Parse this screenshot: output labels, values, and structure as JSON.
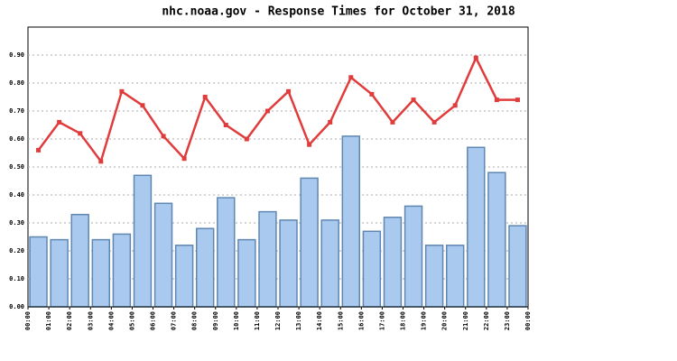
{
  "chart_data": {
    "type": "bar-line",
    "title": "nhc.noaa.gov - Response Times for October 31, 2018",
    "xticks": [
      "00:00",
      "01:00",
      "02:00",
      "03:00",
      "04:00",
      "05:00",
      "06:00",
      "07:00",
      "08:00",
      "09:00",
      "10:00",
      "11:00",
      "12:00",
      "13:00",
      "14:00",
      "15:00",
      "16:00",
      "17:00",
      "18:00",
      "19:00",
      "20:00",
      "21:00",
      "22:00",
      "23:00",
      "00:00"
    ],
    "series": [
      {
        "type": "bar",
        "color": "#a9c9ee",
        "values": [
          0.25,
          0.24,
          0.33,
          0.24,
          0.26,
          0.47,
          0.37,
          0.22,
          0.28,
          0.39,
          0.24,
          0.34,
          0.31,
          0.46,
          0.31,
          0.61,
          0.27,
          0.32,
          0.36,
          0.22,
          0.22,
          0.57,
          0.48,
          0.29
        ]
      },
      {
        "type": "line",
        "color": "#e03c3c",
        "values": [
          0.56,
          0.66,
          0.62,
          0.52,
          0.77,
          0.72,
          0.61,
          0.53,
          0.75,
          0.65,
          0.6,
          0.7,
          0.77,
          0.58,
          0.66,
          0.82,
          0.76,
          0.66,
          0.74,
          0.66,
          0.72,
          0.89,
          0.74,
          0.74
        ]
      }
    ],
    "ylim": [
      0,
      1
    ],
    "yticks": [
      {
        "value": 0,
        "label": "0.00"
      },
      {
        "value": 0.1,
        "label": "0.10"
      },
      {
        "value": 0.2,
        "label": "0.20"
      },
      {
        "value": 0.3,
        "label": "0.30"
      },
      {
        "value": 0.4,
        "label": "0.40"
      },
      {
        "value": 0.5,
        "label": "0.50"
      },
      {
        "value": 0.6,
        "label": "0.60"
      },
      {
        "value": 0.7,
        "label": "0.70"
      },
      {
        "value": 0.8,
        "label": "0.80"
      },
      {
        "value": 0.9,
        "label": "0.90"
      }
    ],
    "grid": true
  }
}
